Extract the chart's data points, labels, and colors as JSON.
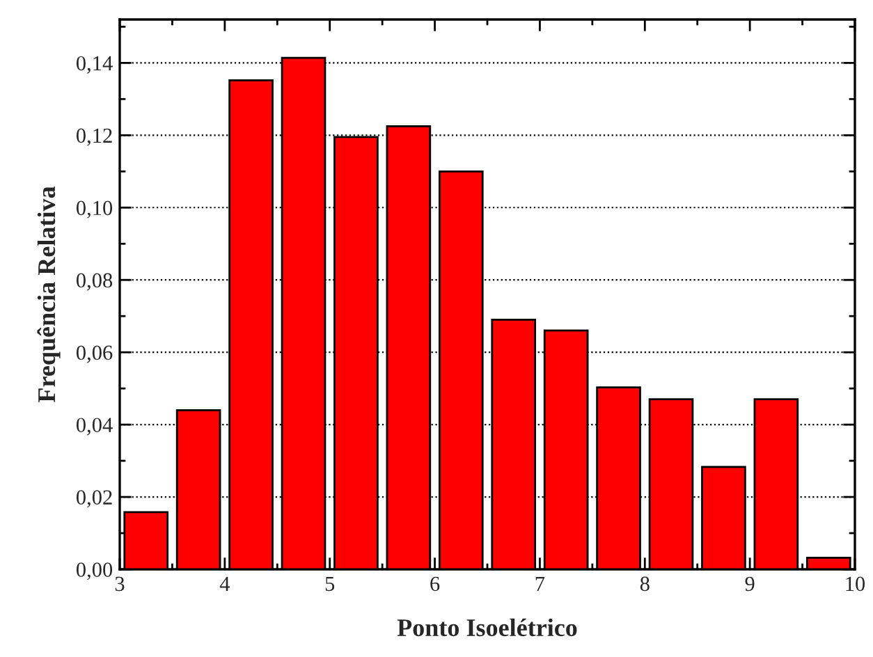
{
  "chart_data": {
    "type": "histogram",
    "xlabel": "Ponto Isoelétrico",
    "ylabel": "Frequência Relativa",
    "bins": [
      3,
      3.5,
      4,
      4.5,
      5,
      5.5,
      6,
      6.5,
      7,
      7.5,
      8,
      8.5,
      9,
      9.5,
      10
    ],
    "values": [
      0.0158,
      0.044,
      0.1352,
      0.1414,
      0.1195,
      0.1225,
      0.11,
      0.069,
      0.066,
      0.0503,
      0.047,
      0.0283,
      0.047,
      0.0032
    ],
    "color": "#ff0000",
    "xlim": [
      3,
      10
    ],
    "xticks": [
      3,
      4,
      5,
      6,
      7,
      8,
      9,
      10
    ],
    "ylim": [
      0,
      0.152
    ],
    "yticks": [
      {
        "value": 0,
        "label": "0,00"
      },
      {
        "value": 0.02,
        "label": "0,02"
      },
      {
        "value": 0.04,
        "label": "0,04"
      },
      {
        "value": 0.06,
        "label": "0,06"
      },
      {
        "value": 0.08,
        "label": "0,08"
      },
      {
        "value": 0.1,
        "label": "0,10"
      },
      {
        "value": 0.12,
        "label": "0,12"
      },
      {
        "value": 0.14,
        "label": "0,14"
      }
    ],
    "grid": "y"
  }
}
